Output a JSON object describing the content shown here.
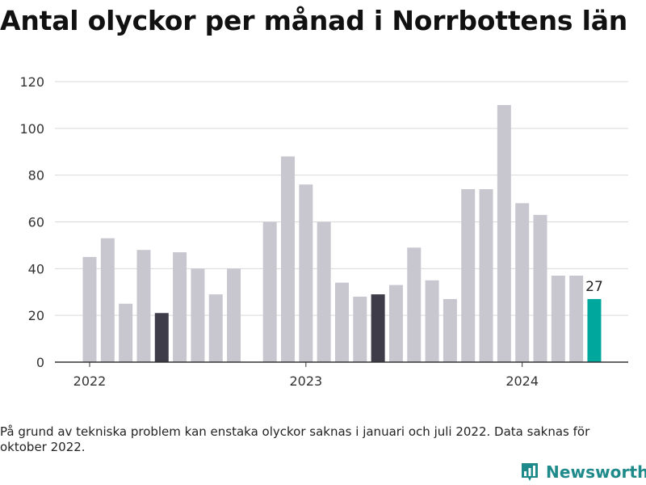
{
  "title": "Antal olyckor per månad i Norrbottens län",
  "footnote": "På grund av tekniska problem kan enstaka olyckor saknas i januari och juli 2022. Data saknas för oktober 2022.",
  "brand": {
    "name": "Newsworthy",
    "icon": "newsworthy-logo-icon",
    "color": "#1f8a8a"
  },
  "colors": {
    "default_bar": "#c8c7cf",
    "highlight_bar": "#3d3c48",
    "latest_bar": "#00a79d",
    "grid": "#d9d9d9",
    "axis": "#333333"
  },
  "chart_data": {
    "type": "bar",
    "title": "Antal olyckor per månad i Norrbottens län",
    "xlabel": "",
    "ylabel": "",
    "ylim": [
      0,
      120
    ],
    "yticks": [
      0,
      20,
      40,
      60,
      80,
      100,
      120
    ],
    "grid": true,
    "categories": [
      "2022-01",
      "2022-02",
      "2022-03",
      "2022-04",
      "2022-05",
      "2022-06",
      "2022-07",
      "2022-08",
      "2022-09",
      "2022-10",
      "2022-11",
      "2022-12",
      "2023-01",
      "2023-02",
      "2023-03",
      "2023-04",
      "2023-05",
      "2023-06",
      "2023-07",
      "2023-08",
      "2023-09",
      "2023-10",
      "2023-11",
      "2023-12",
      "2024-01",
      "2024-02",
      "2024-03",
      "2024-04",
      "2024-05"
    ],
    "values": [
      45,
      53,
      25,
      48,
      21,
      47,
      40,
      29,
      40,
      null,
      60,
      88,
      76,
      60,
      34,
      28,
      29,
      33,
      49,
      35,
      27,
      74,
      74,
      110,
      68,
      63,
      37,
      37,
      27
    ],
    "highlight": [
      "2022-05",
      "2023-05"
    ],
    "latest": "2024-05",
    "xticks": [
      {
        "label": "2022",
        "category": "2022-01"
      },
      {
        "label": "2023",
        "category": "2023-01"
      },
      {
        "label": "2024",
        "category": "2024-01"
      }
    ],
    "data_labels": [
      {
        "category": "2024-05",
        "text": "27"
      }
    ]
  }
}
